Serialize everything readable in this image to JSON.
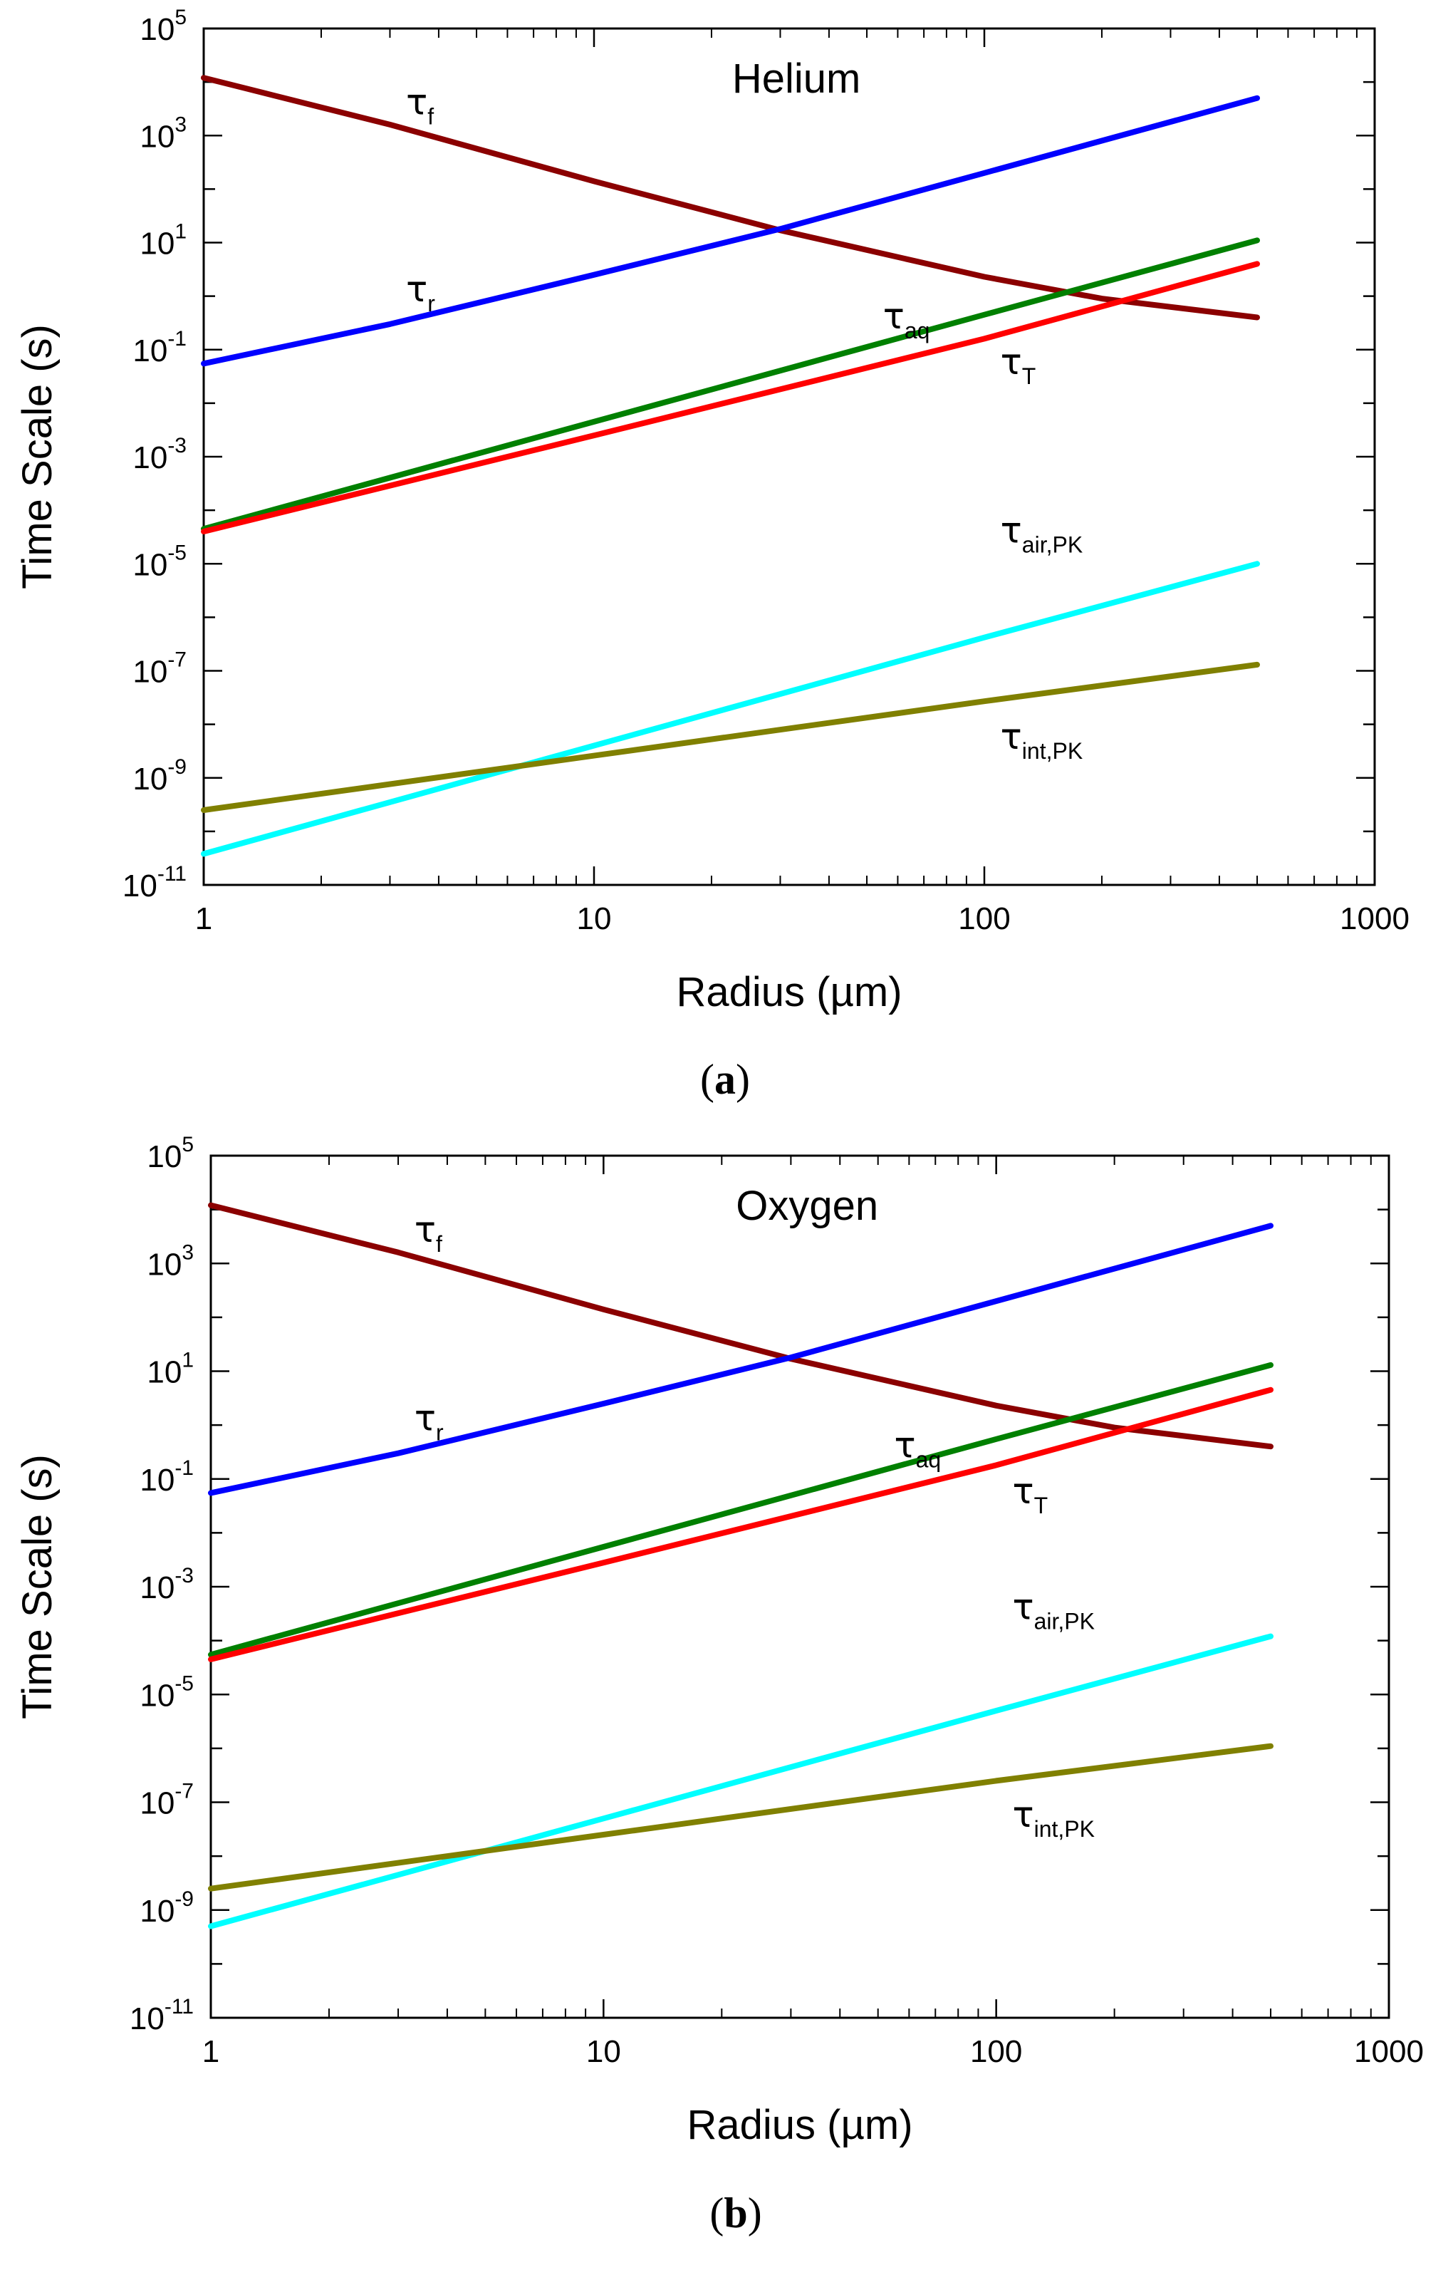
{
  "chart_data": [
    {
      "type": "line",
      "panel": "(a)",
      "caption_letter": "a",
      "title": "Helium",
      "xlabel": "Radius (µm)",
      "ylabel": "Time Scale (s)",
      "xscale": "log",
      "yscale": "log",
      "xlim": [
        1,
        1000
      ],
      "ylim": [
        1e-11,
        100000.0
      ],
      "x_ticks": [
        1,
        10,
        100,
        1000
      ],
      "x_tick_labels": [
        "1",
        "10",
        "100",
        "1000"
      ],
      "y_ticks": [
        -11,
        -9,
        -7,
        -5,
        -3,
        -1,
        1,
        3,
        5
      ],
      "y_tick_mantissa": "10",
      "y_tick_exponents": [
        "-11",
        "-9",
        "-7",
        "-5",
        "-3",
        "-1",
        "1",
        "3",
        "5"
      ],
      "series": [
        {
          "name": "tau_f",
          "symbol": "τ",
          "subscript": "f",
          "color": "#8b0000",
          "x": [
            1,
            3,
            10,
            30,
            100,
            200,
            500
          ],
          "y": [
            12000,
            1600,
            140,
            17,
            2.3,
            0.9,
            0.4
          ]
        },
        {
          "name": "tau_r",
          "symbol": "τ",
          "subscript": "r",
          "color": "#0000ff",
          "x": [
            1,
            3,
            10,
            30,
            100,
            500
          ],
          "y": [
            0.055,
            0.3,
            2.5,
            18,
            200,
            5000
          ]
        },
        {
          "name": "tau_aq",
          "symbol": "τ",
          "subscript": "aq",
          "color": "#008000",
          "x": [
            1,
            10,
            100,
            500
          ],
          "y": [
            4.5e-05,
            0.0045,
            0.45,
            11
          ]
        },
        {
          "name": "tau_T",
          "symbol": "τ",
          "subscript": "T",
          "color": "#ff0000",
          "x": [
            1,
            10,
            100,
            500
          ],
          "y": [
            4e-05,
            0.0025,
            0.16,
            4
          ]
        },
        {
          "name": "tau_air,PK",
          "symbol": "τ",
          "subscript": "air,PK",
          "color": "#00ffff",
          "x": [
            1,
            10,
            100,
            500
          ],
          "y": [
            3.8e-11,
            4e-09,
            4.2e-07,
            1e-05
          ]
        },
        {
          "name": "tau_int,PK",
          "symbol": "τ",
          "subscript": "int,PK",
          "color": "#808000",
          "x": [
            1,
            10,
            100,
            500
          ],
          "y": [
            2.5e-10,
            2.6e-09,
            2.7e-08,
            1.3e-07
          ]
        }
      ],
      "annotations": [
        {
          "series": "tau_f",
          "x": 3.3,
          "y": 2500
        },
        {
          "series": "tau_r",
          "x": 3.3,
          "y": 0.8
        },
        {
          "series": "tau_aq",
          "x": 55,
          "y": 0.25
        },
        {
          "series": "tau_T",
          "x": 110,
          "y": 0.035
        },
        {
          "series": "tau_air,PK",
          "x": 110,
          "y": 2.5e-05
        },
        {
          "series": "tau_int,PK",
          "x": 110,
          "y": 3.5e-09
        }
      ]
    },
    {
      "type": "line",
      "panel": "(b)",
      "caption_letter": "b",
      "title": "Oxygen",
      "xlabel": "Radius (µm)",
      "ylabel": "Time Scale (s)",
      "xscale": "log",
      "yscale": "log",
      "xlim": [
        1,
        1000
      ],
      "ylim": [
        1e-11,
        100000.0
      ],
      "x_ticks": [
        1,
        10,
        100,
        1000
      ],
      "x_tick_labels": [
        "1",
        "10",
        "100",
        "1000"
      ],
      "y_ticks": [
        -11,
        -9,
        -7,
        -5,
        -3,
        -1,
        1,
        3,
        5
      ],
      "y_tick_mantissa": "10",
      "y_tick_exponents": [
        "-11",
        "-9",
        "-7",
        "-5",
        "-3",
        "-1",
        "1",
        "3",
        "5"
      ],
      "series": [
        {
          "name": "tau_f",
          "symbol": "τ",
          "subscript": "f",
          "color": "#8b0000",
          "x": [
            1,
            3,
            10,
            30,
            100,
            200,
            500
          ],
          "y": [
            12000,
            1600,
            140,
            17,
            2.3,
            0.9,
            0.4
          ]
        },
        {
          "name": "tau_r",
          "symbol": "τ",
          "subscript": "r",
          "color": "#0000ff",
          "x": [
            1,
            3,
            10,
            30,
            100,
            500
          ],
          "y": [
            0.055,
            0.3,
            2.5,
            18,
            200,
            5000
          ]
        },
        {
          "name": "tau_aq",
          "symbol": "τ",
          "subscript": "aq",
          "color": "#008000",
          "x": [
            1,
            10,
            100,
            500
          ],
          "y": [
            5.5e-05,
            0.0055,
            0.55,
            13
          ]
        },
        {
          "name": "tau_T",
          "symbol": "τ",
          "subscript": "T",
          "color": "#ff0000",
          "x": [
            1,
            10,
            100,
            500
          ],
          "y": [
            4.5e-05,
            0.0028,
            0.18,
            4.5
          ]
        },
        {
          "name": "tau_air,PK",
          "symbol": "τ",
          "subscript": "air,PK",
          "color": "#00ffff",
          "x": [
            1,
            10,
            100,
            500
          ],
          "y": [
            5e-10,
            5e-08,
            5e-06,
            0.00012
          ]
        },
        {
          "name": "tau_int,PK",
          "symbol": "τ",
          "subscript": "int,PK",
          "color": "#808000",
          "x": [
            1,
            10,
            100,
            500
          ],
          "y": [
            2.5e-09,
            2.5e-08,
            2.5e-07,
            1.1e-06
          ]
        }
      ],
      "annotations": [
        {
          "series": "tau_f",
          "x": 3.3,
          "y": 2500
        },
        {
          "series": "tau_r",
          "x": 3.3,
          "y": 0.8
        },
        {
          "series": "tau_aq",
          "x": 55,
          "y": 0.25
        },
        {
          "series": "tau_T",
          "x": 110,
          "y": 0.035
        },
        {
          "series": "tau_air,PK",
          "x": 110,
          "y": 0.00025
        },
        {
          "series": "tau_int,PK",
          "x": 110,
          "y": 3.5e-08
        }
      ]
    }
  ]
}
